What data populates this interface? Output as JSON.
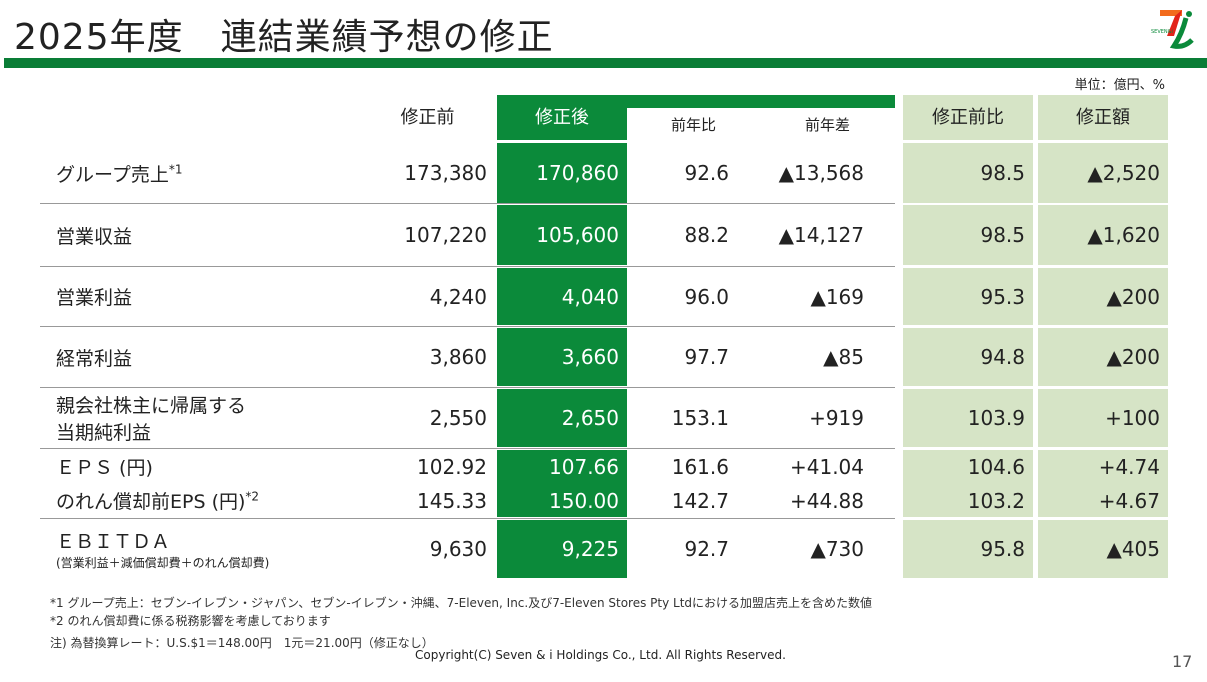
{
  "title": "2025年度　連結業績予想の修正",
  "logo_text": "SEVEN & i HOLDINGS",
  "unit": "単位：億円、%",
  "headers": {
    "before": "修正前",
    "after": "修正後",
    "yoy_ratio": "前年比",
    "yoy_diff": "前年差",
    "vs_before": "修正前比",
    "revision": "修正額"
  },
  "rows": [
    {
      "label": "グループ売上",
      "sup": "*1",
      "before": "173,380",
      "after": "170,860",
      "yoy_ratio": "92.6",
      "yoy_diff": "▲13,568",
      "vs_before": "98.5",
      "revision": "▲2,520"
    },
    {
      "label": "営業収益",
      "before": "107,220",
      "after": "105,600",
      "yoy_ratio": "88.2",
      "yoy_diff": "▲14,127",
      "vs_before": "98.5",
      "revision": "▲1,620"
    },
    {
      "label": "営業利益",
      "before": "4,240",
      "after": "4,040",
      "yoy_ratio": "96.0",
      "yoy_diff": "▲169",
      "vs_before": "95.3",
      "revision": "▲200"
    },
    {
      "label": "経常利益",
      "before": "3,860",
      "after": "3,660",
      "yoy_ratio": "97.7",
      "yoy_diff": "▲85",
      "vs_before": "94.8",
      "revision": "▲200"
    },
    {
      "label": "親会社株主に帰属する",
      "label2": "当期純利益",
      "before": "2,550",
      "after": "2,650",
      "yoy_ratio": "153.1",
      "yoy_diff": "+919",
      "vs_before": "103.9",
      "revision": "+100"
    },
    {
      "label": "ＥＰＳ (円)",
      "before": "102.92",
      "after": "107.66",
      "yoy_ratio": "161.6",
      "yoy_diff": "+41.04",
      "vs_before": "104.6",
      "revision": "+4.74"
    },
    {
      "label": "のれん償却前EPS (円)",
      "sup": "*2",
      "before": "145.33",
      "after": "150.00",
      "yoy_ratio": "142.7",
      "yoy_diff": "+44.88",
      "vs_before": "103.2",
      "revision": "+4.67"
    },
    {
      "label": "ＥＢＩＴＤＡ",
      "label2": "(営業利益＋減価償却費＋のれん償却費)",
      "before": "9,630",
      "after": "9,225",
      "yoy_ratio": "92.7",
      "yoy_diff": "▲730",
      "vs_before": "95.8",
      "revision": "▲405"
    }
  ],
  "footnotes": [
    "*1 グループ売上：セブン‐イレブン・ジャパン、セブン‐イレブン・沖縄、7-Eleven, Inc.及び7-Eleven Stores Pty Ltdにおける加盟店売上を含めた数値",
    "*2 のれん償却費に係る税務影響を考慮しております",
    "注) 為替換算レート：U.S.$1＝148.00円　1元＝21.00円（修正なし）"
  ],
  "copyright": "Copyright(C) Seven & i Holdings Co., Ltd. All Rights Reserved.",
  "page_number": "17"
}
